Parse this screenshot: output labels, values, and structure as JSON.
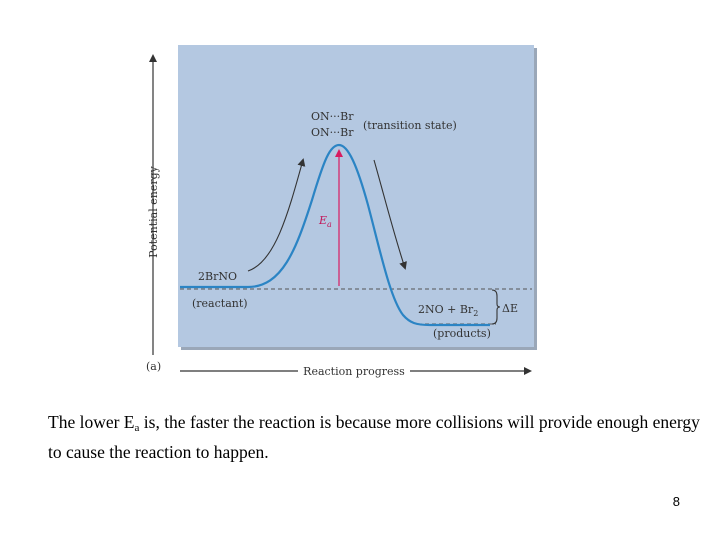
{
  "diagram": {
    "panel_label": "(a)",
    "y_axis_label": "Potential energy",
    "x_axis_label": "Reaction progress",
    "transition_state": {
      "line1": "ON···Br",
      "line2": "ON···Br",
      "label": "(transition state)"
    },
    "activation_energy": {
      "symbol": "E",
      "subscript": "a"
    },
    "reactant": {
      "formula": "2BrNO",
      "label": "(reactant)"
    },
    "products": {
      "formula": "2NO + Br",
      "subscript": "2",
      "label": "(products)"
    },
    "delta_e": "ΔE",
    "colors": {
      "panel_bg": "#b4c8e1",
      "curve": "#2b84c4",
      "ea_arrow": "#d81b60",
      "axis": "#333333"
    }
  },
  "caption": {
    "before_sub": "The lower E",
    "sub": "a",
    "after_sub": " is, the faster the reaction is because more collisions will provide enough energy to cause the reaction to happen."
  },
  "page_number": "8"
}
